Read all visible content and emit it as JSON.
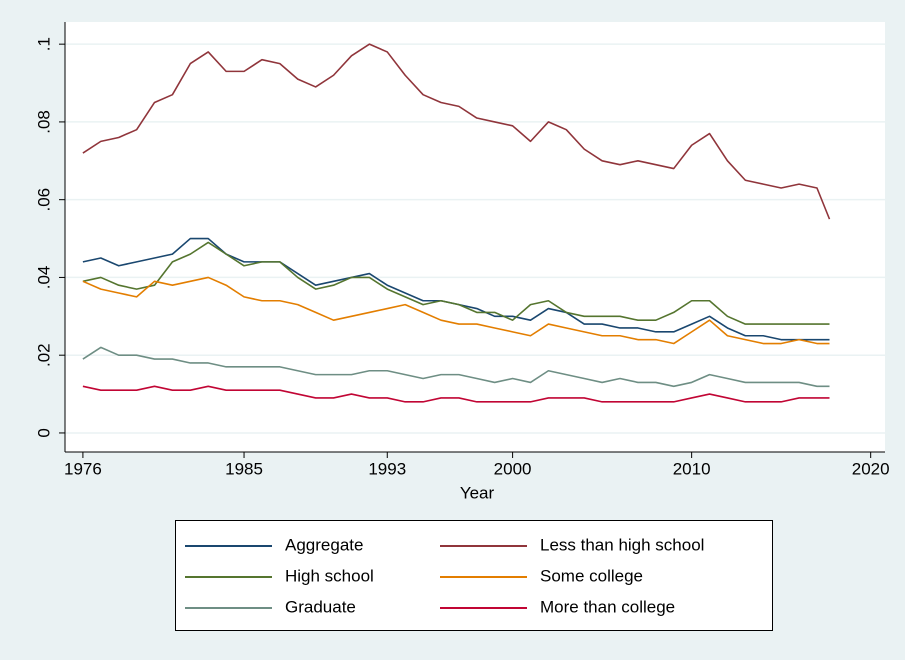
{
  "chart_data": {
    "type": "line",
    "x_label": "Year",
    "x": [
      1976,
      1977,
      1978,
      1979,
      1980,
      1981,
      1982,
      1983,
      1984,
      1985,
      1986,
      1987,
      1988,
      1989,
      1990,
      1991,
      1992,
      1993,
      1994,
      1995,
      1996,
      1997,
      1998,
      1999,
      2000,
      2001,
      2002,
      2003,
      2004,
      2005,
      2006,
      2007,
      2008,
      2009,
      2010,
      2011,
      2012,
      2013,
      2014,
      2015,
      2016,
      2017,
      2017.7
    ],
    "xlim": [
      1975,
      2020.8
    ],
    "xticks": [
      1976,
      1985,
      1993,
      2000,
      2010,
      2020
    ],
    "ylim": [
      -0.0049,
      0.1057
    ],
    "yticks": [
      0,
      {
        "value": 0.02,
        "label": ".02"
      },
      {
        "value": 0.04,
        "label": ".04"
      },
      {
        "value": 0.06,
        "label": ".06"
      },
      {
        "value": 0.08,
        "label": ".08"
      },
      {
        "value": 0.1,
        "label": ".1"
      }
    ],
    "grid": true,
    "series": [
      {
        "name": "Aggregate",
        "color": "#1a476f",
        "values": [
          0.044,
          0.045,
          0.043,
          0.044,
          0.045,
          0.046,
          0.05,
          0.05,
          0.046,
          0.044,
          0.044,
          0.044,
          0.041,
          0.038,
          0.039,
          0.04,
          0.041,
          0.038,
          0.036,
          0.034,
          0.034,
          0.033,
          0.032,
          0.03,
          0.03,
          0.029,
          0.032,
          0.031,
          0.028,
          0.028,
          0.027,
          0.027,
          0.026,
          0.026,
          0.028,
          0.03,
          0.027,
          0.025,
          0.025,
          0.024,
          0.024,
          0.024,
          0.024
        ]
      },
      {
        "name": "Less than high school",
        "color": "#90353b",
        "values": [
          0.072,
          0.075,
          0.076,
          0.078,
          0.085,
          0.087,
          0.095,
          0.098,
          0.093,
          0.093,
          0.096,
          0.095,
          0.091,
          0.089,
          0.092,
          0.097,
          0.1,
          0.098,
          0.092,
          0.087,
          0.085,
          0.084,
          0.081,
          0.08,
          0.079,
          0.075,
          0.08,
          0.078,
          0.073,
          0.07,
          0.069,
          0.07,
          0.069,
          0.068,
          0.074,
          0.077,
          0.07,
          0.065,
          0.064,
          0.063,
          0.064,
          0.063,
          0.055
        ]
      },
      {
        "name": "High school",
        "color": "#55752f",
        "values": [
          0.039,
          0.04,
          0.038,
          0.037,
          0.038,
          0.044,
          0.046,
          0.049,
          0.046,
          0.043,
          0.044,
          0.044,
          0.04,
          0.037,
          0.038,
          0.04,
          0.04,
          0.037,
          0.035,
          0.033,
          0.034,
          0.033,
          0.031,
          0.031,
          0.029,
          0.033,
          0.034,
          0.031,
          0.03,
          0.03,
          0.03,
          0.029,
          0.029,
          0.031,
          0.034,
          0.034,
          0.03,
          0.028,
          0.028,
          0.028,
          0.028,
          0.028,
          0.028
        ]
      },
      {
        "name": "Some college",
        "color": "#e37e00",
        "values": [
          0.039,
          0.037,
          0.036,
          0.035,
          0.039,
          0.038,
          0.039,
          0.04,
          0.038,
          0.035,
          0.034,
          0.034,
          0.033,
          0.031,
          0.029,
          0.03,
          0.031,
          0.032,
          0.033,
          0.031,
          0.029,
          0.028,
          0.028,
          0.027,
          0.026,
          0.025,
          0.028,
          0.027,
          0.026,
          0.025,
          0.025,
          0.024,
          0.024,
          0.023,
          0.026,
          0.029,
          0.025,
          0.024,
          0.023,
          0.023,
          0.024,
          0.023,
          0.023
        ]
      },
      {
        "name": "Graduate",
        "color": "#6e8e84",
        "values": [
          0.019,
          0.022,
          0.02,
          0.02,
          0.019,
          0.019,
          0.018,
          0.018,
          0.017,
          0.017,
          0.017,
          0.017,
          0.016,
          0.015,
          0.015,
          0.015,
          0.016,
          0.016,
          0.015,
          0.014,
          0.015,
          0.015,
          0.014,
          0.013,
          0.014,
          0.013,
          0.016,
          0.015,
          0.014,
          0.013,
          0.014,
          0.013,
          0.013,
          0.012,
          0.013,
          0.015,
          0.014,
          0.013,
          0.013,
          0.013,
          0.013,
          0.012,
          0.012
        ]
      },
      {
        "name": "More than college",
        "color": "#c10534",
        "values": [
          0.012,
          0.011,
          0.011,
          0.011,
          0.012,
          0.011,
          0.011,
          0.012,
          0.011,
          0.011,
          0.011,
          0.011,
          0.01,
          0.009,
          0.009,
          0.01,
          0.009,
          0.009,
          0.008,
          0.008,
          0.009,
          0.009,
          0.008,
          0.008,
          0.008,
          0.008,
          0.009,
          0.009,
          0.009,
          0.008,
          0.008,
          0.008,
          0.008,
          0.008,
          0.009,
          0.01,
          0.009,
          0.008,
          0.008,
          0.008,
          0.009,
          0.009,
          0.009
        ]
      }
    ]
  }
}
